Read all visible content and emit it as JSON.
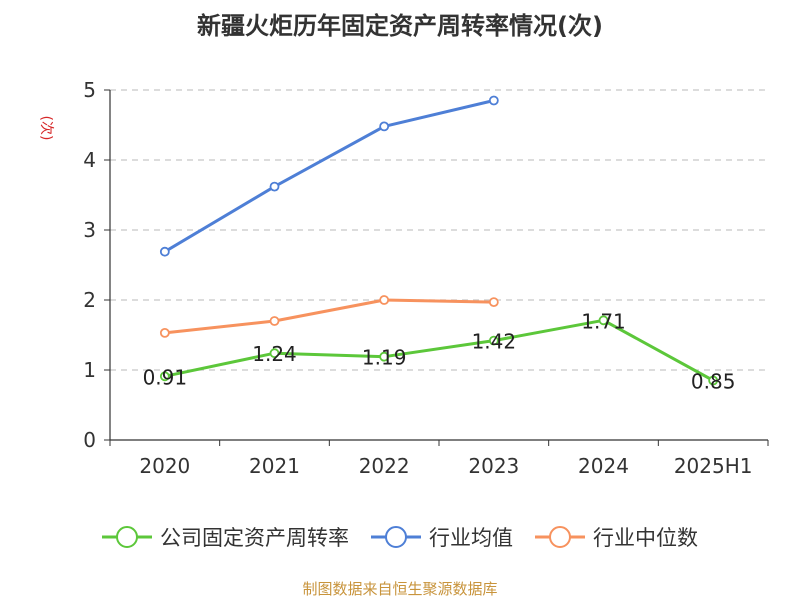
{
  "chart_data": {
    "type": "line",
    "title": "新疆火炬历年固定资产周转率情况(次)",
    "ylabel": "(次)",
    "xlabel": "",
    "categories": [
      "2020",
      "2021",
      "2022",
      "2023",
      "2024",
      "2025H1"
    ],
    "ylim": [
      0,
      5
    ],
    "yticks": [
      0,
      1,
      2,
      3,
      4,
      5
    ],
    "grid": true,
    "legend_position": "bottom",
    "series": [
      {
        "name": "公司固定资产周转率",
        "color": "#5cc73a",
        "values": [
          0.91,
          1.24,
          1.19,
          1.42,
          1.71,
          0.85
        ],
        "show_labels": true
      },
      {
        "name": "行业均值",
        "color": "#4e7fd6",
        "values": [
          2.69,
          3.62,
          4.48,
          4.85,
          null,
          null
        ],
        "show_labels": false
      },
      {
        "name": "行业中位数",
        "color": "#f7925e",
        "values": [
          1.53,
          1.7,
          2.0,
          1.97,
          null,
          null
        ],
        "show_labels": false
      }
    ]
  },
  "source_text": "制图数据来自恒生聚源数据库"
}
